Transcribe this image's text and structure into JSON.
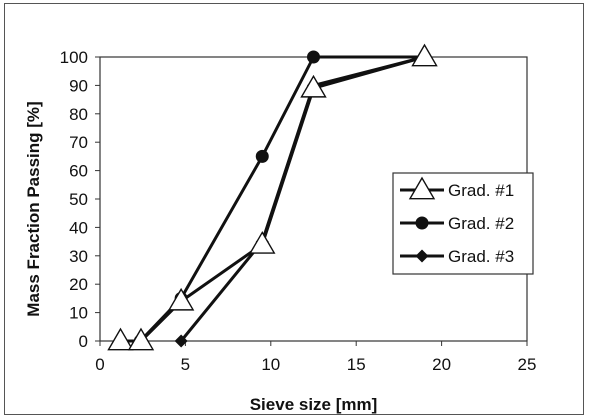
{
  "chart_data": {
    "type": "line",
    "title": "",
    "xlabel": "Sieve size [mm]",
    "ylabel": "Mass Fraction Passing [%]",
    "xlim": [
      0,
      25
    ],
    "ylim": [
      0,
      100
    ],
    "xticks": [
      "0",
      "5",
      "10",
      "15",
      "20",
      "25"
    ],
    "yticks": [
      "0",
      "10",
      "20",
      "30",
      "40",
      "50",
      "60",
      "70",
      "80",
      "90",
      "100"
    ],
    "grid": false,
    "legend_position": "right",
    "series": [
      {
        "name": "Grad. #1",
        "marker": "triangle",
        "x": [
          1.2,
          2.4,
          4.75,
          9.5,
          12.5,
          19.0
        ],
        "y": [
          0,
          0,
          14,
          34,
          89,
          100
        ]
      },
      {
        "name": "Grad. #2",
        "marker": "circle",
        "x": [
          2.36,
          4.75,
          9.5,
          12.5,
          19.0
        ],
        "y": [
          0,
          15,
          65,
          100,
          100
        ]
      },
      {
        "name": "Grad. #3",
        "marker": "diamond",
        "x": [
          4.75,
          9.5,
          12.5,
          19.0
        ],
        "y": [
          0,
          35,
          90,
          100
        ]
      }
    ]
  }
}
